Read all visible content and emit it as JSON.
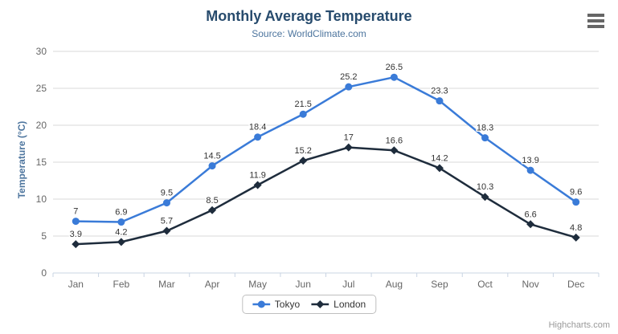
{
  "credits": "Highcharts.com",
  "menu": {
    "icon": "hamburger-menu"
  },
  "colors": {
    "title": "#274b6d",
    "subtitle": "#4d759e",
    "axis_labels": "#666666",
    "data_labels": "#333333",
    "gridline": "#d8d8d8",
    "axis_line": "#c9d4e3",
    "credits": "#999999"
  },
  "chart_data": {
    "type": "line",
    "title": "Monthly Average Temperature",
    "subtitle": "Source: WorldClimate.com",
    "categories": [
      "Jan",
      "Feb",
      "Mar",
      "Apr",
      "May",
      "Jun",
      "Jul",
      "Aug",
      "Sep",
      "Oct",
      "Nov",
      "Dec"
    ],
    "series": [
      {
        "name": "Tokyo",
        "color": "#3a7bd8",
        "marker": "circle",
        "values": [
          7,
          6.9,
          9.5,
          14.5,
          18.4,
          21.5,
          25.2,
          26.5,
          23.3,
          18.3,
          13.9,
          9.6
        ]
      },
      {
        "name": "London",
        "color": "#1e2c3c",
        "marker": "diamond",
        "values": [
          3.9,
          4.2,
          5.7,
          8.5,
          11.9,
          15.2,
          17,
          16.6,
          14.2,
          10.3,
          6.6,
          4.8
        ]
      }
    ],
    "xlabel": "",
    "ylabel": "Temperature (°C)",
    "ylim": [
      0,
      30
    ],
    "ytick_step": 5,
    "grid": true,
    "data_labels": true,
    "legend_position": "bottom-center"
  }
}
